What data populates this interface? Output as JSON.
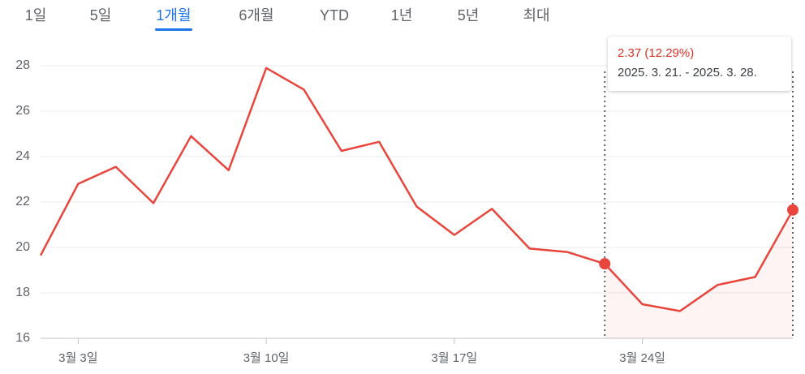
{
  "tabs": [
    "1일",
    "5일",
    "1개월",
    "6개월",
    "YTD",
    "1년",
    "5년",
    "최대"
  ],
  "selected_tab": 2,
  "chart_data": {
    "type": "line",
    "categories": [
      null,
      "3월 3일",
      null,
      null,
      null,
      null,
      "3월 10일",
      null,
      null,
      null,
      null,
      "3월 17일",
      null,
      null,
      null,
      null,
      "3월 24일",
      null,
      null,
      null,
      null
    ],
    "series": [
      {
        "color": "#e8453c",
        "values": [
          19.65,
          22.8,
          23.55,
          21.95,
          24.9,
          23.4,
          27.9,
          26.95,
          24.25,
          24.65,
          21.8,
          20.55,
          21.7,
          19.95,
          19.8,
          19.28,
          17.5,
          17.2,
          18.35,
          18.7,
          21.65
        ]
      }
    ],
    "ylim": [
      16,
      28
    ],
    "yticks": [
      16,
      18,
      20,
      22,
      24,
      26,
      28
    ],
    "grid": true,
    "highlight": [
      15,
      20
    ],
    "tooltip": {
      "change": "2.37 (12.29%)",
      "range": "2025. 3. 21. - 2025. 3. 28."
    }
  }
}
